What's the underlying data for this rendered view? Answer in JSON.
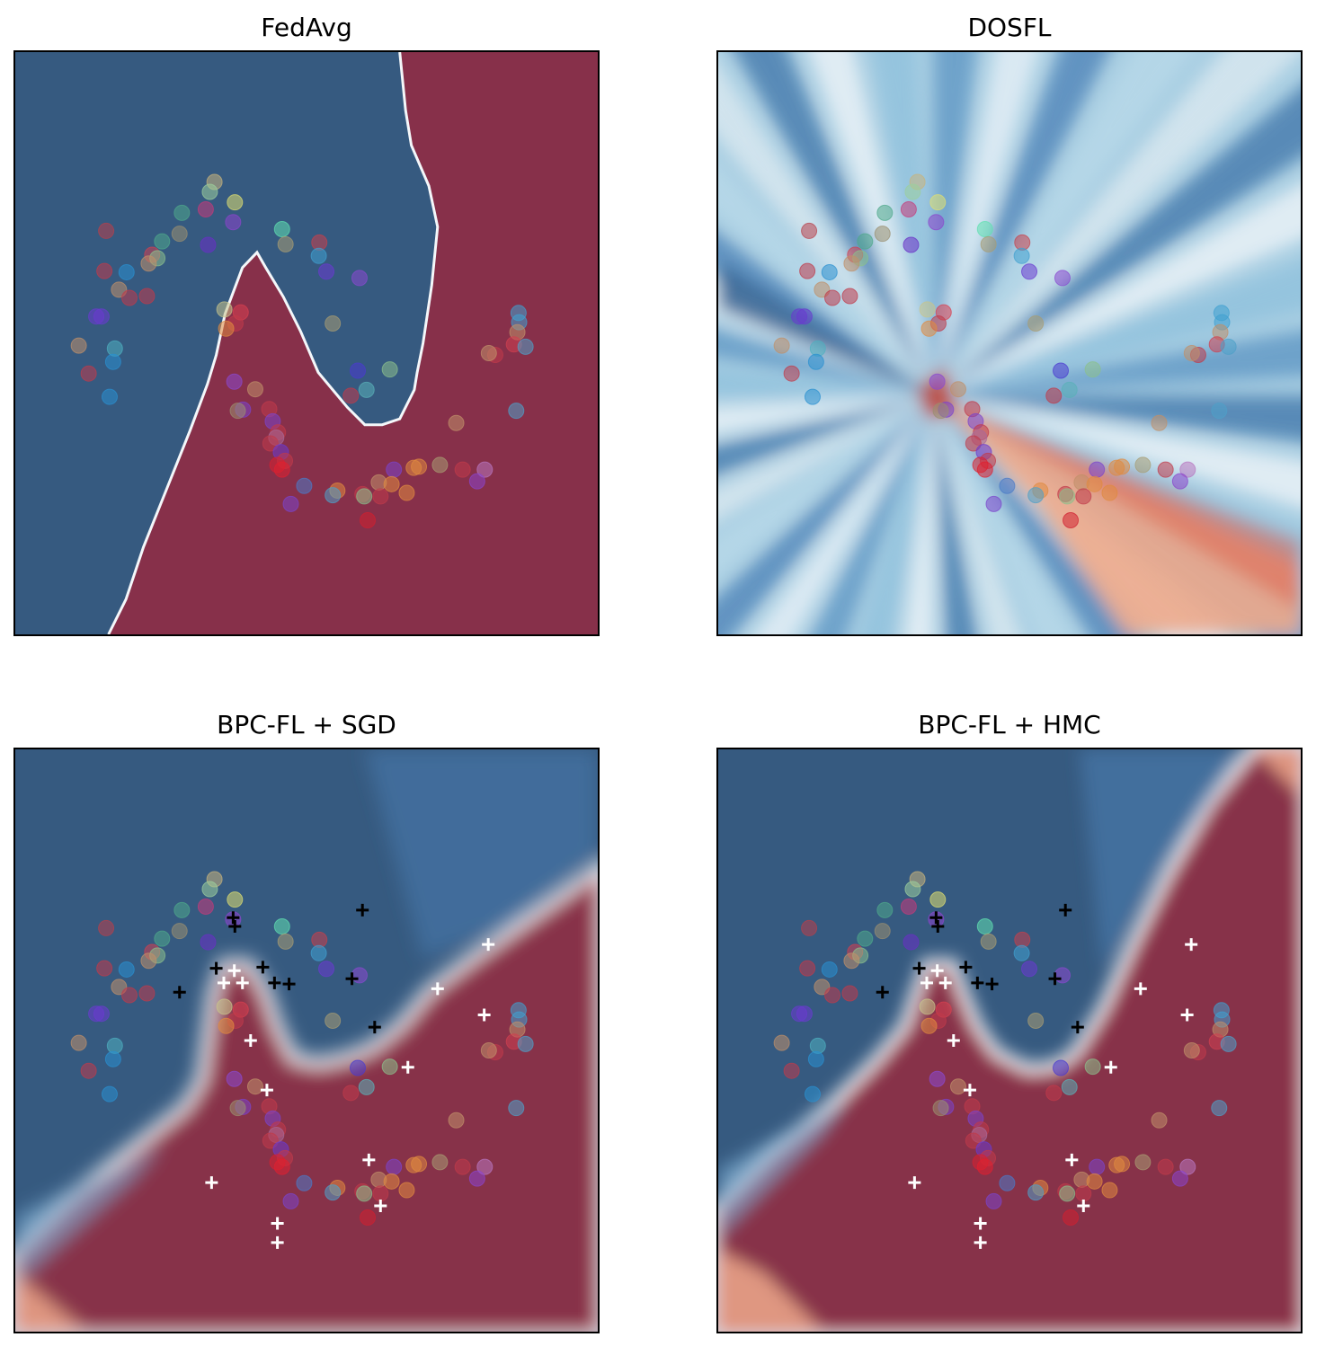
{
  "colors": {
    "class0": "#365a80",
    "class1": "#87304a",
    "boundary": "#f4f7fa",
    "light_blue": "#a9cfe3",
    "mid_blue": "#5b93c2",
    "light_red": "#eea98b",
    "cross_class0": "#000000",
    "cross_class1": "#ffffff"
  },
  "chart_data": [
    {
      "type": "scatter",
      "title": "FedAvg",
      "surface": "hard-boundary",
      "xlim": [
        0,
        100
      ],
      "ylim": [
        0,
        100
      ],
      "grid": false
    },
    {
      "type": "scatter",
      "title": "DOSFL",
      "surface": "radial-uncertain",
      "xlim": [
        0,
        100
      ],
      "ylim": [
        0,
        100
      ],
      "grid": false
    },
    {
      "type": "scatter",
      "title": "BPC-FL + SGD",
      "surface": "smooth-boundary",
      "xlim": [
        0,
        100
      ],
      "ylim": [
        0,
        100
      ],
      "grid": false
    },
    {
      "type": "scatter",
      "title": "BPC-FL + HMC",
      "surface": "smooth-boundary",
      "xlim": [
        0,
        100
      ],
      "ylim": [
        0,
        100
      ],
      "grid": false
    }
  ],
  "points": [
    {
      "x": 34.2,
      "y": 77.7,
      "color": "#c8b47c"
    },
    {
      "x": 33.4,
      "y": 76.0,
      "color": "#9ccf9c"
    },
    {
      "x": 37.7,
      "y": 74.2,
      "color": "#e0e070"
    },
    {
      "x": 32.7,
      "y": 73.0,
      "color": "#c43a7a"
    },
    {
      "x": 28.6,
      "y": 72.4,
      "color": "#4fa88a"
    },
    {
      "x": 37.4,
      "y": 70.8,
      "color": "#8c44cc"
    },
    {
      "x": 45.8,
      "y": 69.6,
      "color": "#60e0b0"
    },
    {
      "x": 28.2,
      "y": 68.8,
      "color": "#9a8f70"
    },
    {
      "x": 15.6,
      "y": 69.3,
      "color": "#b8404a"
    },
    {
      "x": 25.2,
      "y": 67.5,
      "color": "#4fa88a"
    },
    {
      "x": 46.4,
      "y": 67.0,
      "color": "#a89c72"
    },
    {
      "x": 33.1,
      "y": 66.9,
      "color": "#6a2fc6"
    },
    {
      "x": 52.2,
      "y": 67.3,
      "color": "#c8404a"
    },
    {
      "x": 23.5,
      "y": 65.2,
      "color": "#d04050"
    },
    {
      "x": 24.4,
      "y": 64.6,
      "color": "#8cc08c"
    },
    {
      "x": 22.9,
      "y": 63.7,
      "color": "#c0906a"
    },
    {
      "x": 52.1,
      "y": 65.0,
      "color": "#3fa0d0"
    },
    {
      "x": 53.4,
      "y": 62.3,
      "color": "#6a3ad0"
    },
    {
      "x": 15.3,
      "y": 62.4,
      "color": "#c03a4a"
    },
    {
      "x": 19.1,
      "y": 62.2,
      "color": "#2a90d0"
    },
    {
      "x": 59.1,
      "y": 61.2,
      "color": "#8a48d0"
    },
    {
      "x": 17.8,
      "y": 59.2,
      "color": "#c0906a"
    },
    {
      "x": 19.6,
      "y": 57.8,
      "color": "#c03a4a"
    },
    {
      "x": 22.6,
      "y": 58.1,
      "color": "#c03a4a"
    },
    {
      "x": 35.9,
      "y": 55.8,
      "color": "#c8c48a"
    },
    {
      "x": 38.7,
      "y": 55.3,
      "color": "#d84050"
    },
    {
      "x": 13.9,
      "y": 54.6,
      "color": "#6a3ad0"
    },
    {
      "x": 14.8,
      "y": 54.6,
      "color": "#6a3ad0"
    },
    {
      "x": 86.4,
      "y": 55.2,
      "color": "#3fa0d0"
    },
    {
      "x": 86.5,
      "y": 53.6,
      "color": "#3fa0d0"
    },
    {
      "x": 54.5,
      "y": 53.4,
      "color": "#a89c72"
    },
    {
      "x": 37.8,
      "y": 53.4,
      "color": "#c03a4a"
    },
    {
      "x": 36.2,
      "y": 52.5,
      "color": "#e08a40"
    },
    {
      "x": 86.2,
      "y": 51.9,
      "color": "#c0906a"
    },
    {
      "x": 85.6,
      "y": 49.8,
      "color": "#d04050"
    },
    {
      "x": 87.6,
      "y": 49.4,
      "color": "#4fa0c8"
    },
    {
      "x": 10.9,
      "y": 49.6,
      "color": "#c0906a"
    },
    {
      "x": 17.1,
      "y": 49.1,
      "color": "#4fb0c0"
    },
    {
      "x": 82.4,
      "y": 48.0,
      "color": "#c03a4a"
    },
    {
      "x": 81.3,
      "y": 48.3,
      "color": "#c0906a"
    },
    {
      "x": 16.8,
      "y": 46.8,
      "color": "#2a90d0"
    },
    {
      "x": 12.6,
      "y": 44.8,
      "color": "#c03a4a"
    },
    {
      "x": 58.8,
      "y": 45.3,
      "color": "#4a3ad0"
    },
    {
      "x": 64.3,
      "y": 45.5,
      "color": "#8cc08c"
    },
    {
      "x": 37.6,
      "y": 43.4,
      "color": "#8a48d0"
    },
    {
      "x": 41.2,
      "y": 42.1,
      "color": "#c0906a"
    },
    {
      "x": 60.3,
      "y": 42.0,
      "color": "#5ab0b8"
    },
    {
      "x": 57.6,
      "y": 41.0,
      "color": "#c03a4a"
    },
    {
      "x": 16.2,
      "y": 40.8,
      "color": "#2a90d0"
    },
    {
      "x": 39.1,
      "y": 38.6,
      "color": "#7a44cc"
    },
    {
      "x": 43.6,
      "y": 38.7,
      "color": "#c03a4a"
    },
    {
      "x": 38.2,
      "y": 38.4,
      "color": "#9a8f70"
    },
    {
      "x": 86.0,
      "y": 38.4,
      "color": "#4fa0c8"
    },
    {
      "x": 44.2,
      "y": 36.6,
      "color": "#7a44cc"
    },
    {
      "x": 45.1,
      "y": 34.7,
      "color": "#c03a4a"
    },
    {
      "x": 75.7,
      "y": 36.3,
      "color": "#c0906a"
    },
    {
      "x": 44.8,
      "y": 33.8,
      "color": "#a86a9a"
    },
    {
      "x": 43.8,
      "y": 32.8,
      "color": "#c03a4a"
    },
    {
      "x": 45.6,
      "y": 31.3,
      "color": "#6a3ad0"
    },
    {
      "x": 46.3,
      "y": 29.8,
      "color": "#c03a4a"
    },
    {
      "x": 45.0,
      "y": 29.1,
      "color": "#d82030"
    },
    {
      "x": 45.8,
      "y": 28.3,
      "color": "#e02030"
    },
    {
      "x": 72.9,
      "y": 29.1,
      "color": "#a89c72"
    },
    {
      "x": 68.4,
      "y": 28.6,
      "color": "#e08a40"
    },
    {
      "x": 69.3,
      "y": 28.8,
      "color": "#e08a40"
    },
    {
      "x": 65.0,
      "y": 28.3,
      "color": "#7a44cc"
    },
    {
      "x": 76.8,
      "y": 28.3,
      "color": "#c03a4a"
    },
    {
      "x": 80.6,
      "y": 28.3,
      "color": "#b876c0"
    },
    {
      "x": 79.3,
      "y": 26.3,
      "color": "#8a44cc"
    },
    {
      "x": 62.4,
      "y": 26.1,
      "color": "#c0906a"
    },
    {
      "x": 64.6,
      "y": 25.8,
      "color": "#e08a40"
    },
    {
      "x": 49.6,
      "y": 25.5,
      "color": "#4a7ac8"
    },
    {
      "x": 55.3,
      "y": 24.7,
      "color": "#e08a40"
    },
    {
      "x": 54.5,
      "y": 23.9,
      "color": "#4fa0c8"
    },
    {
      "x": 67.2,
      "y": 24.3,
      "color": "#e08a40"
    },
    {
      "x": 59.6,
      "y": 24.1,
      "color": "#c03a4a"
    },
    {
      "x": 59.9,
      "y": 23.7,
      "color": "#8cc08c"
    },
    {
      "x": 47.3,
      "y": 22.4,
      "color": "#7a44cc"
    },
    {
      "x": 60.5,
      "y": 19.6,
      "color": "#d02030"
    },
    {
      "x": 62.7,
      "y": 23.7,
      "color": "#c03a4a"
    }
  ],
  "crosses_class0": [
    {
      "x": 59.6,
      "y": 72.4
    },
    {
      "x": 37.4,
      "y": 71.1
    },
    {
      "x": 37.7,
      "y": 69.6
    },
    {
      "x": 34.5,
      "y": 62.4
    },
    {
      "x": 42.5,
      "y": 62.6
    },
    {
      "x": 57.8,
      "y": 60.6
    },
    {
      "x": 44.5,
      "y": 59.9
    },
    {
      "x": 47.0,
      "y": 59.7
    },
    {
      "x": 28.2,
      "y": 58.3
    },
    {
      "x": 61.7,
      "y": 52.3
    }
  ],
  "crosses_class1": [
    {
      "x": 81.2,
      "y": 66.5
    },
    {
      "x": 37.6,
      "y": 62.0
    },
    {
      "x": 35.8,
      "y": 59.9
    },
    {
      "x": 39.0,
      "y": 59.9
    },
    {
      "x": 72.5,
      "y": 58.9
    },
    {
      "x": 80.5,
      "y": 54.4
    },
    {
      "x": 40.4,
      "y": 50.0
    },
    {
      "x": 67.4,
      "y": 45.4
    },
    {
      "x": 43.2,
      "y": 41.5
    },
    {
      "x": 60.7,
      "y": 29.5
    },
    {
      "x": 33.7,
      "y": 25.6
    },
    {
      "x": 62.7,
      "y": 21.6
    },
    {
      "x": 45.0,
      "y": 18.6
    },
    {
      "x": 45.0,
      "y": 15.3
    }
  ]
}
